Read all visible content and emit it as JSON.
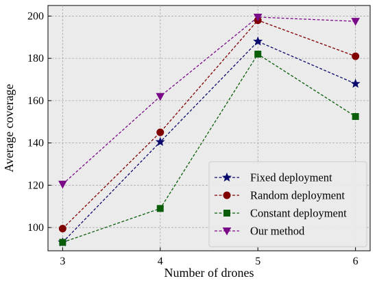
{
  "chart_data": {
    "type": "line",
    "title": "",
    "xlabel": "Number of drones",
    "ylabel": "Average coverage",
    "x": [
      3,
      4,
      5,
      6
    ],
    "xticks": [
      "3",
      "4",
      "5",
      "6"
    ],
    "yticks": [
      "100",
      "120",
      "140",
      "160",
      "180",
      "200"
    ],
    "xlim": [
      2.85,
      6.15
    ],
    "ylim": [
      89,
      205
    ],
    "grid": true,
    "legend_position": "bottom-right",
    "series": [
      {
        "name": "Fixed deployment",
        "values": [
          93,
          140.5,
          188,
          168
        ],
        "color": "#0a0a6e",
        "marker": "star"
      },
      {
        "name": "Random deployment",
        "values": [
          99.5,
          145,
          198,
          181
        ],
        "color": "#800000",
        "marker": "circle"
      },
      {
        "name": "Constant deployment",
        "values": [
          93,
          109,
          182,
          152.5
        ],
        "color": "#0a5e0a",
        "marker": "square"
      },
      {
        "name": "Our method",
        "values": [
          120.5,
          162,
          199.5,
          197.5
        ],
        "color": "#7a0a88",
        "marker": "triangle-down"
      }
    ]
  }
}
